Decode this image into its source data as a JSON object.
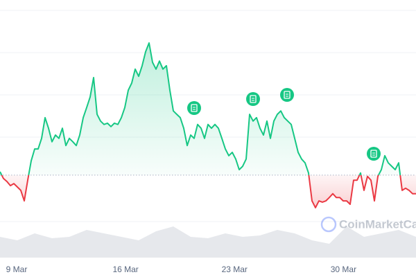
{
  "chart_data": {
    "type": "line",
    "watermark": "CoinMarketCap",
    "xlim": [
      7.93,
      34.66
    ],
    "xticks": [
      {
        "value": 9,
        "label": "9 Mar"
      },
      {
        "value": 16,
        "label": "16 Mar"
      },
      {
        "value": 23,
        "label": "23 Mar"
      },
      {
        "value": 30,
        "label": "30 Mar"
      }
    ],
    "ylim": [
      0,
      60
    ],
    "baseline": 21.0,
    "y2lim": [
      0,
      100
    ],
    "series": [
      {
        "color": "#16c784",
        "below_color": "#ea3943",
        "values": [
          21.8,
          20.2,
          19.5,
          18.5,
          19.0,
          18.2,
          17.4,
          14.9,
          19.8,
          24.4,
          27.2,
          27.2,
          29.7,
          34.6,
          32.1,
          28.9,
          30.5,
          29.7,
          32.1,
          28.0,
          29.7,
          28.9,
          28.0,
          30.5,
          34.6,
          37.0,
          39.5,
          44.1,
          35.4,
          33.8,
          33.0,
          33.3,
          32.5,
          33.3,
          33.0,
          34.6,
          37.0,
          41.1,
          42.8,
          46.1,
          44.4,
          46.9,
          50.2,
          52.3,
          47.7,
          46.1,
          48.0,
          46.1,
          46.9,
          41.1,
          36.2,
          35.4,
          34.6,
          32.1,
          28.0,
          30.5,
          29.7,
          33.0,
          32.1,
          29.7,
          33.0,
          32.1,
          33.0,
          32.1,
          29.7,
          27.2,
          25.6,
          26.4,
          24.8,
          22.3,
          23.1,
          24.8,
          35.4,
          33.8,
          34.6,
          32.1,
          30.5,
          33.8,
          29.7,
          33.8,
          35.4,
          36.2,
          34.6,
          33.8,
          33.0,
          29.7,
          26.4,
          24.8,
          23.9,
          21.5,
          14.9,
          13.3,
          14.9,
          14.6,
          14.9,
          15.7,
          16.6,
          15.7,
          15.7,
          14.9,
          14.9,
          14.1,
          19.8,
          19.8,
          21.5,
          17.4,
          20.7,
          19.8,
          14.9,
          20.7,
          22.3,
          25.6,
          23.9,
          23.1,
          22.3,
          23.9,
          17.4,
          17.9,
          17.4,
          16.6,
          16.6
        ]
      },
      {
        "axis": "y2",
        "color": "#e6e8ec",
        "values": [
          30,
          25,
          35,
          28,
          30,
          40,
          35,
          30,
          25,
          38,
          45,
          30,
          28,
          35,
          30,
          32,
          40,
          35,
          25,
          20,
          45,
          30,
          35,
          40,
          30
        ]
      }
    ]
  }
}
